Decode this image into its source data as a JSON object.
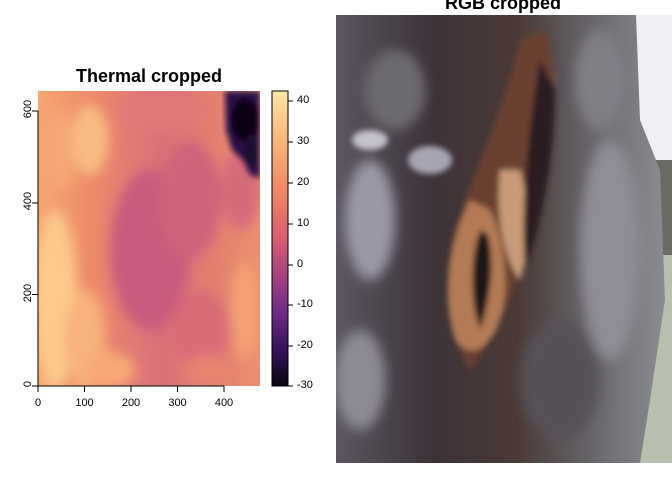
{
  "thermal_panel": {
    "title": "Thermal cropped",
    "x_ticks": [
      "0",
      "100",
      "200",
      "300",
      "400"
    ],
    "y_ticks": [
      "0",
      "200",
      "400",
      "600"
    ],
    "colorbar_ticks": [
      "40",
      "30",
      "20",
      "10",
      "0",
      "-10",
      "-20",
      "-30"
    ],
    "colors": {
      "hot": "#fde7a6",
      "warm": "#f5a36b",
      "mid": "#e4766b",
      "cool": "#b8507f",
      "cold": "#5a2a86",
      "coldest": "#14061e"
    }
  },
  "rgb_panel": {
    "title": "RGB cropped"
  }
}
